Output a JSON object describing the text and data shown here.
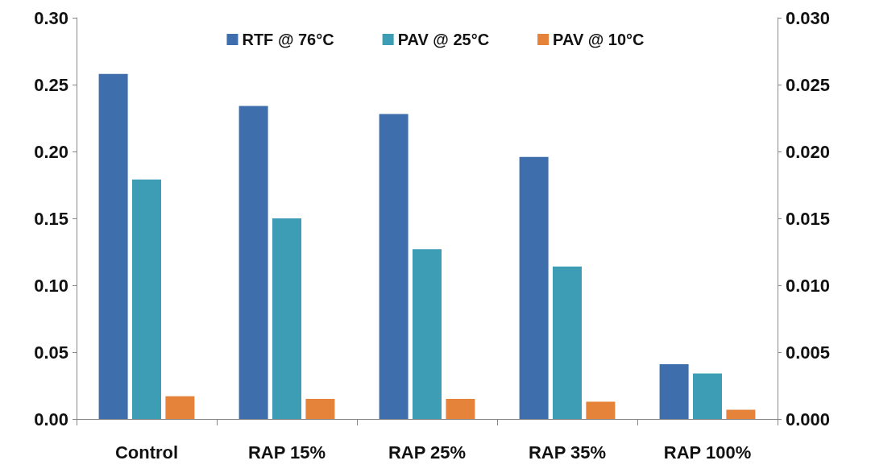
{
  "chart_data": {
    "type": "bar",
    "categories": [
      "Control",
      "RAP 15%",
      "RAP 25%",
      "RAP 35%",
      "RAP 100%"
    ],
    "series": [
      {
        "name": "RTF @ 76°C",
        "color": "#3f6ead",
        "values": [
          0.258,
          0.234,
          0.228,
          0.196,
          0.041
        ]
      },
      {
        "name": "PAV @ 25°C",
        "color": "#3c9db4",
        "values": [
          0.179,
          0.15,
          0.127,
          0.114,
          0.034
        ]
      },
      {
        "name": "PAV @ 10°C",
        "color": "#e5833a",
        "values": [
          0.017,
          0.015,
          0.015,
          0.013,
          0.007
        ]
      }
    ],
    "ylim": [
      0,
      0.3
    ],
    "yticks": [
      {
        "value": 0,
        "label": "0.00"
      },
      {
        "value": 0.05,
        "label": "0.05"
      },
      {
        "value": 0.1,
        "label": "0.10"
      },
      {
        "value": 0.15,
        "label": "0.15"
      },
      {
        "value": 0.2,
        "label": "0.20"
      },
      {
        "value": 0.25,
        "label": "0.25"
      },
      {
        "value": 0.3,
        "label": "0.30"
      }
    ],
    "y2lim": [
      0,
      0.03
    ],
    "y2ticks": [
      {
        "value": 0,
        "label": "0.000"
      },
      {
        "value": 0.005,
        "label": "0.005"
      },
      {
        "value": 0.01,
        "label": "0.010"
      },
      {
        "value": 0.015,
        "label": "0.015"
      },
      {
        "value": 0.02,
        "label": "0.020"
      },
      {
        "value": 0.025,
        "label": "0.025"
      },
      {
        "value": 0.03,
        "label": "0.030"
      }
    ],
    "grid": false,
    "legend": "top"
  }
}
